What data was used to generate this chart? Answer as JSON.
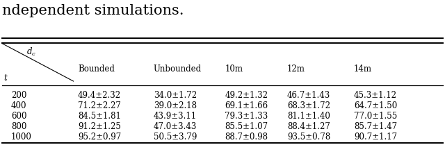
{
  "title_text": "ndependent simulations.",
  "col_labels": [
    "Bounded",
    "Unbounded",
    "10m",
    "12m",
    "14m"
  ],
  "row_labels": [
    "200",
    "400",
    "600",
    "800",
    "1000"
  ],
  "table_data": [
    [
      "49.4±2.32",
      "34.0±1.72",
      "49.2±1.32",
      "46.7±1.43",
      "45.3±1.12"
    ],
    [
      "71.2±2.27",
      "39.0±2.18",
      "69.1±1.66",
      "68.3±1.72",
      "64.7±1.50"
    ],
    [
      "84.5±1.81",
      "43.9±3.11",
      "79.3±1.33",
      "81.1±1.40",
      "77.0±1.55"
    ],
    [
      "91.2±1.25",
      "47.0±3.43",
      "85.5±1.07",
      "88.4±1.27",
      "85.7±1.47"
    ],
    [
      "95.2±0.97",
      "50.5±3.79",
      "88.7±0.98",
      "93.5±0.78",
      "90.7±1.17"
    ]
  ],
  "bg_color": "#ffffff",
  "text_color": "#000000",
  "font_size": 8.5,
  "title_font_size": 15
}
